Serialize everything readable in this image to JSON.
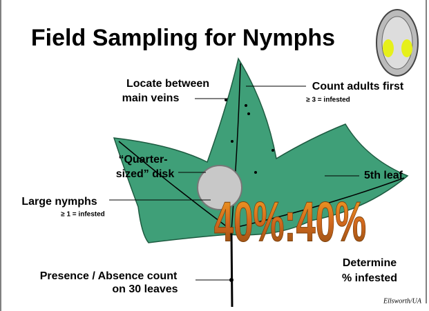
{
  "title": "Field Sampling for Nymphs",
  "labels": {
    "locate": [
      "Locate between",
      "main veins"
    ],
    "count_adults": {
      "text": "Count adults first",
      "note": "≥ 3 = infested"
    },
    "quarter": [
      "“Quarter-",
      "sized” disk"
    ],
    "fifth_leaf": "5th leaf",
    "large_nymphs": {
      "text": "Large nymphs",
      "note": "≥ 1 = infested"
    },
    "ratio": "40%:40%",
    "determine": [
      "Determine",
      "% infested"
    ],
    "presence": [
      "Presence / Absence count",
      "on 30 leaves"
    ]
  },
  "credit": "Ellsworth/UA"
}
